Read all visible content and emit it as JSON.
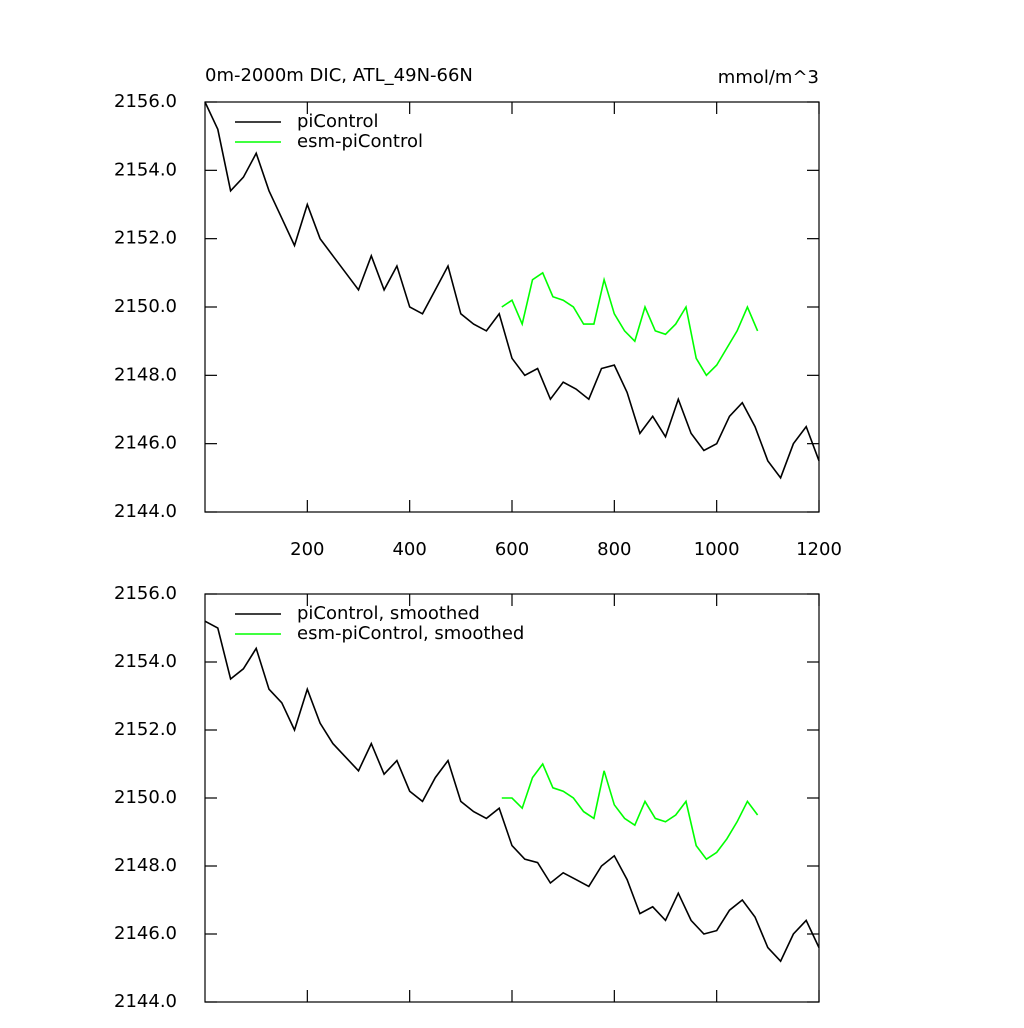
{
  "chart_data": [
    {
      "type": "line",
      "title": "0m-2000m DIC, ATL_49N-66N",
      "units": "mmol/m^3",
      "xlim": [
        0,
        1200
      ],
      "xticks": [
        200,
        400,
        600,
        800,
        1000,
        1200
      ],
      "ylim": [
        2144,
        2156
      ],
      "yticks": [
        {
          "value": 2144,
          "label": "2144.0"
        },
        {
          "value": 2146,
          "label": "2146.0"
        },
        {
          "value": 2148,
          "label": "2148.0"
        },
        {
          "value": 2150,
          "label": "2150.0"
        },
        {
          "value": 2152,
          "label": "2152.0"
        },
        {
          "value": 2154,
          "label": "2154.0"
        },
        {
          "value": 2156,
          "label": "2156.0"
        }
      ],
      "legend": "upper-left",
      "series": [
        {
          "name": "piControl",
          "color": "#000000",
          "x": [
            0,
            25,
            50,
            75,
            100,
            125,
            150,
            175,
            200,
            225,
            250,
            275,
            300,
            325,
            350,
            375,
            400,
            425,
            450,
            475,
            500,
            525,
            550,
            575,
            600,
            625,
            650,
            675,
            700,
            725,
            750,
            775,
            800,
            825,
            850,
            875,
            900,
            925,
            950,
            975,
            1000,
            1025,
            1050,
            1075,
            1100,
            1125,
            1150,
            1175,
            1200
          ],
          "values": [
            2156.0,
            2155.2,
            2153.4,
            2153.8,
            2154.5,
            2153.4,
            2152.6,
            2151.8,
            2153.0,
            2152.0,
            2151.5,
            2151.0,
            2150.5,
            2151.5,
            2150.5,
            2151.2,
            2150.0,
            2149.8,
            2150.5,
            2151.2,
            2149.8,
            2149.5,
            2149.3,
            2149.8,
            2148.5,
            2148.0,
            2148.2,
            2147.3,
            2147.8,
            2147.6,
            2147.3,
            2148.2,
            2148.3,
            2147.5,
            2146.3,
            2146.8,
            2146.2,
            2147.3,
            2146.3,
            2145.8,
            2146.0,
            2146.8,
            2147.2,
            2146.5,
            2145.5,
            2145.0,
            2146.0,
            2146.5,
            2145.5
          ]
        },
        {
          "name": "esm-piControl",
          "color": "#00ff00",
          "x": [
            580,
            600,
            620,
            640,
            660,
            680,
            700,
            720,
            740,
            760,
            780,
            800,
            820,
            840,
            860,
            880,
            900,
            920,
            940,
            960,
            980,
            1000,
            1020,
            1040,
            1060,
            1080
          ],
          "values": [
            2150.0,
            2150.2,
            2149.5,
            2150.8,
            2151.0,
            2150.3,
            2150.2,
            2150.0,
            2149.5,
            2149.5,
            2150.8,
            2149.8,
            2149.3,
            2149.0,
            2150.0,
            2149.3,
            2149.2,
            2149.5,
            2150.0,
            2148.5,
            2148.0,
            2148.3,
            2148.8,
            2149.3,
            2150.0,
            2149.3
          ]
        }
      ]
    },
    {
      "type": "line",
      "xlim": [
        0,
        1200
      ],
      "xticks": [
        200,
        400,
        600,
        800,
        1000,
        1200
      ],
      "ylim": [
        2144,
        2156
      ],
      "yticks": [
        {
          "value": 2144,
          "label": "2144.0"
        },
        {
          "value": 2146,
          "label": "2146.0"
        },
        {
          "value": 2148,
          "label": "2148.0"
        },
        {
          "value": 2150,
          "label": "2150.0"
        },
        {
          "value": 2152,
          "label": "2152.0"
        },
        {
          "value": 2154,
          "label": "2154.0"
        },
        {
          "value": 2156,
          "label": "2156.0"
        }
      ],
      "legend": "upper-left",
      "series": [
        {
          "name": "piControl, smoothed",
          "color": "#000000",
          "x": [
            0,
            25,
            50,
            75,
            100,
            125,
            150,
            175,
            200,
            225,
            250,
            275,
            300,
            325,
            350,
            375,
            400,
            425,
            450,
            475,
            500,
            525,
            550,
            575,
            600,
            625,
            650,
            675,
            700,
            725,
            750,
            775,
            800,
            825,
            850,
            875,
            900,
            925,
            950,
            975,
            1000,
            1025,
            1050,
            1075,
            1100,
            1125,
            1150,
            1175,
            1200
          ],
          "values": [
            2155.2,
            2155.0,
            2153.5,
            2153.8,
            2154.4,
            2153.2,
            2152.8,
            2152.0,
            2153.2,
            2152.2,
            2151.6,
            2151.2,
            2150.8,
            2151.6,
            2150.7,
            2151.1,
            2150.2,
            2149.9,
            2150.6,
            2151.1,
            2149.9,
            2149.6,
            2149.4,
            2149.7,
            2148.6,
            2148.2,
            2148.1,
            2147.5,
            2147.8,
            2147.6,
            2147.4,
            2148.0,
            2148.3,
            2147.6,
            2146.6,
            2146.8,
            2146.4,
            2147.2,
            2146.4,
            2146.0,
            2146.1,
            2146.7,
            2147.0,
            2146.5,
            2145.6,
            2145.2,
            2146.0,
            2146.4,
            2145.6
          ]
        },
        {
          "name": "esm-piControl, smoothed",
          "color": "#00ff00",
          "x": [
            580,
            600,
            620,
            640,
            660,
            680,
            700,
            720,
            740,
            760,
            780,
            800,
            820,
            840,
            860,
            880,
            900,
            920,
            940,
            960,
            980,
            1000,
            1020,
            1040,
            1060,
            1080
          ],
          "values": [
            2150.0,
            2150.0,
            2149.7,
            2150.6,
            2151.0,
            2150.3,
            2150.2,
            2150.0,
            2149.6,
            2149.4,
            2150.8,
            2149.8,
            2149.4,
            2149.2,
            2149.9,
            2149.4,
            2149.3,
            2149.5,
            2149.9,
            2148.6,
            2148.2,
            2148.4,
            2148.8,
            2149.3,
            2149.9,
            2149.5
          ]
        }
      ]
    }
  ]
}
